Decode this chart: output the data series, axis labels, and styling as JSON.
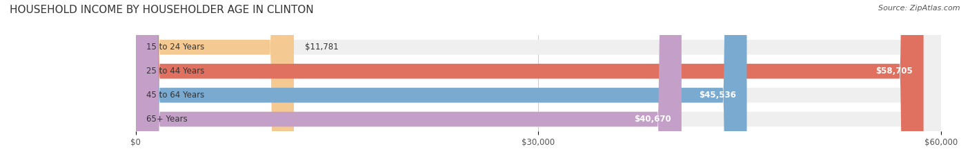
{
  "title": "HOUSEHOLD INCOME BY HOUSEHOLDER AGE IN CLINTON",
  "source": "Source: ZipAtlas.com",
  "categories": [
    "15 to 24 Years",
    "25 to 44 Years",
    "45 to 64 Years",
    "65+ Years"
  ],
  "values": [
    11781,
    58705,
    45536,
    40670
  ],
  "value_labels": [
    "$11,781",
    "$58,705",
    "$45,536",
    "$40,670"
  ],
  "bar_colors": [
    "#f5c992",
    "#e07060",
    "#7aaad0",
    "#c4a0c8"
  ],
  "bar_bg_color": "#efefef",
  "xlim": [
    0,
    60000
  ],
  "xticks": [
    0,
    30000,
    60000
  ],
  "xtick_labels": [
    "$0",
    "$30,000",
    "$60,000"
  ],
  "title_fontsize": 11,
  "label_fontsize": 8.5,
  "value_fontsize": 8.5,
  "source_fontsize": 8,
  "bar_height": 0.62,
  "label_color": "#555555",
  "title_color": "#333333",
  "source_color": "#555555",
  "bg_color": "#ffffff",
  "grid_color": "#cccccc"
}
